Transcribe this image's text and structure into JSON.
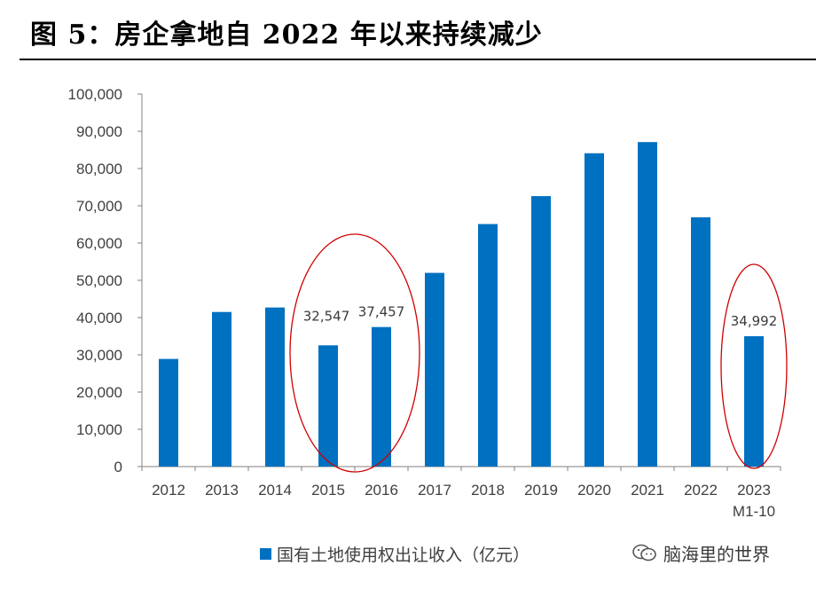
{
  "title": "图 5：房企拿地自 2022 年以来持续减少",
  "colors": {
    "bar": "#0070c0",
    "circle": "#d00000",
    "axis": "#808080"
  },
  "chart_data": {
    "type": "bar",
    "categories": [
      "2012",
      "2013",
      "2014",
      "2015",
      "2016",
      "2017",
      "2018",
      "2019",
      "2020",
      "2021",
      "2022",
      "2023"
    ],
    "category_sublabels": [
      "",
      "",
      "",
      "",
      "",
      "",
      "",
      "",
      "",
      "",
      "",
      "M1-10"
    ],
    "series": [
      {
        "name": "国有土地使用权出让收入（亿元）",
        "values": [
          28900,
          41500,
          42700,
          32547,
          37457,
          52000,
          65100,
          72600,
          84100,
          87100,
          66900,
          34992
        ]
      }
    ],
    "data_labels": {
      "2015": "32,547",
      "2016": "37,457",
      "2023": "34,992"
    },
    "ylim": [
      0,
      100000
    ],
    "yticks": [
      0,
      10000,
      20000,
      30000,
      40000,
      50000,
      60000,
      70000,
      80000,
      90000,
      100000
    ],
    "ytick_labels": [
      "0",
      "10,000",
      "20,000",
      "30,000",
      "40,000",
      "50,000",
      "60,000",
      "70,000",
      "80,000",
      "90,000",
      "100,000"
    ],
    "highlights": [
      [
        "2015",
        "2016"
      ],
      [
        "2023"
      ]
    ],
    "grid": false,
    "legend_position": "bottom-center"
  },
  "legend": {
    "label": "国有土地使用权出让收入（亿元）"
  },
  "watermark": {
    "text": "脑海里的世界",
    "icon": "wechat-icon"
  }
}
